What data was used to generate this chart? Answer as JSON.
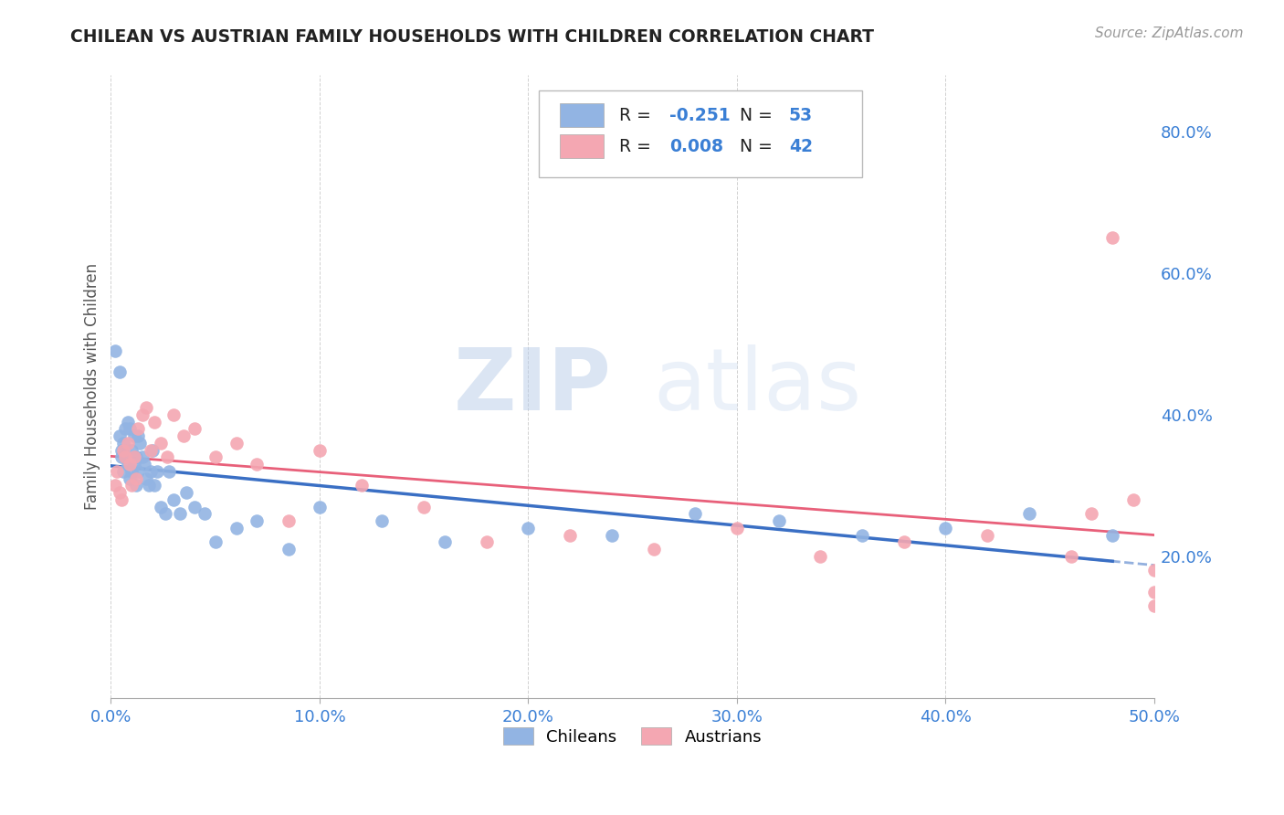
{
  "title": "CHILEAN VS AUSTRIAN FAMILY HOUSEHOLDS WITH CHILDREN CORRELATION CHART",
  "source": "Source: ZipAtlas.com",
  "ylabel": "Family Households with Children",
  "xlim": [
    0.0,
    0.5
  ],
  "ylim": [
    0.0,
    0.88
  ],
  "xticks": [
    0.0,
    0.1,
    0.2,
    0.3,
    0.4,
    0.5
  ],
  "yticks_right": [
    0.2,
    0.4,
    0.6,
    0.8
  ],
  "ytick_labels_right": [
    "20.0%",
    "40.0%",
    "60.0%",
    "80.0%"
  ],
  "xtick_labels": [
    "0.0%",
    "10.0%",
    "20.0%",
    "30.0%",
    "40.0%",
    "50.0%"
  ],
  "chilean_R": -0.251,
  "chilean_N": 53,
  "austrian_R": 0.008,
  "austrian_N": 42,
  "chilean_color": "#92b4e3",
  "austrian_color": "#f4a7b2",
  "chilean_line_color": "#3a6fc4",
  "austrian_line_color": "#e8607a",
  "watermark_zip": "ZIP",
  "watermark_atlas": "atlas",
  "background_color": "#ffffff",
  "grid_color": "#cccccc",
  "chilean_x": [
    0.002,
    0.004,
    0.004,
    0.005,
    0.005,
    0.006,
    0.006,
    0.007,
    0.007,
    0.008,
    0.008,
    0.009,
    0.009,
    0.01,
    0.01,
    0.011,
    0.011,
    0.012,
    0.012,
    0.013,
    0.013,
    0.014,
    0.015,
    0.016,
    0.017,
    0.018,
    0.019,
    0.02,
    0.021,
    0.022,
    0.024,
    0.026,
    0.028,
    0.03,
    0.033,
    0.036,
    0.04,
    0.045,
    0.05,
    0.06,
    0.07,
    0.085,
    0.1,
    0.13,
    0.16,
    0.2,
    0.24,
    0.28,
    0.32,
    0.36,
    0.4,
    0.44,
    0.48
  ],
  "chilean_y": [
    0.49,
    0.46,
    0.37,
    0.35,
    0.34,
    0.36,
    0.32,
    0.38,
    0.34,
    0.33,
    0.39,
    0.31,
    0.38,
    0.32,
    0.35,
    0.37,
    0.33,
    0.34,
    0.3,
    0.37,
    0.32,
    0.36,
    0.34,
    0.33,
    0.31,
    0.3,
    0.32,
    0.35,
    0.3,
    0.32,
    0.27,
    0.26,
    0.32,
    0.28,
    0.26,
    0.29,
    0.27,
    0.26,
    0.22,
    0.24,
    0.25,
    0.21,
    0.27,
    0.25,
    0.22,
    0.24,
    0.23,
    0.26,
    0.25,
    0.23,
    0.24,
    0.26,
    0.23
  ],
  "austrian_x": [
    0.002,
    0.003,
    0.004,
    0.005,
    0.006,
    0.007,
    0.008,
    0.009,
    0.01,
    0.011,
    0.012,
    0.013,
    0.015,
    0.017,
    0.019,
    0.021,
    0.024,
    0.027,
    0.03,
    0.035,
    0.04,
    0.05,
    0.06,
    0.07,
    0.085,
    0.1,
    0.12,
    0.15,
    0.18,
    0.22,
    0.26,
    0.3,
    0.34,
    0.38,
    0.42,
    0.46,
    0.47,
    0.48,
    0.49,
    0.5,
    0.5,
    0.5
  ],
  "austrian_y": [
    0.3,
    0.32,
    0.29,
    0.28,
    0.35,
    0.34,
    0.36,
    0.33,
    0.3,
    0.34,
    0.31,
    0.38,
    0.4,
    0.41,
    0.35,
    0.39,
    0.36,
    0.34,
    0.4,
    0.37,
    0.38,
    0.34,
    0.36,
    0.33,
    0.25,
    0.35,
    0.3,
    0.27,
    0.22,
    0.23,
    0.21,
    0.24,
    0.2,
    0.22,
    0.23,
    0.2,
    0.26,
    0.65,
    0.28,
    0.18,
    0.15,
    0.13
  ]
}
